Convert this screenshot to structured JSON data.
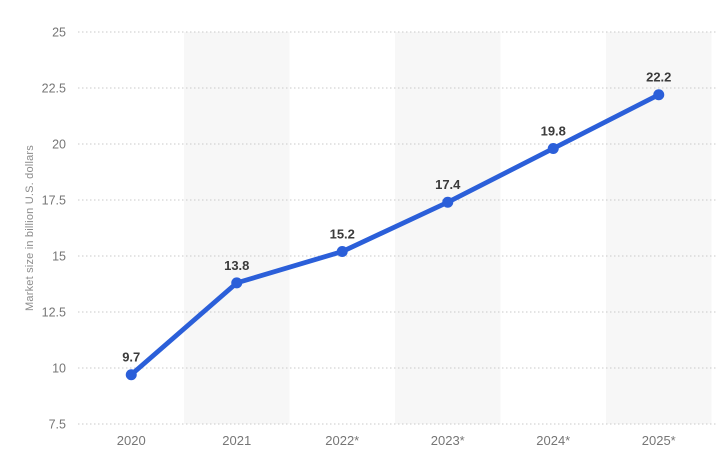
{
  "y_axis": {
    "title": "Market size in billion U.S. dollars",
    "tick_labels": [
      "25",
      "22.5",
      "20",
      "17.5",
      "15",
      "12.5",
      "10",
      "7.5"
    ]
  },
  "x_axis": {
    "tick_labels": [
      "2020",
      "2021",
      "2022*",
      "2023*",
      "2024*",
      "2025*"
    ]
  },
  "chart_data": {
    "type": "line",
    "categories": [
      "2020",
      "2021",
      "2022*",
      "2023*",
      "2024*",
      "2025*"
    ],
    "values": [
      9.7,
      13.8,
      15.2,
      17.4,
      19.8,
      22.2
    ],
    "data_labels": [
      "9.7",
      "13.8",
      "15.2",
      "17.4",
      "19.8",
      "22.2"
    ],
    "title": "",
    "xlabel": "",
    "ylabel": "Market size in billion U.S. dollars",
    "ylim": [
      7.5,
      25
    ],
    "ytick_step": 2.5,
    "grid": "horizontal-dotted",
    "legend": "none",
    "plot_bands": "alternating vertical bands on 2021, 2023*, 2025* columns",
    "colors": {
      "line": "#2b5fd9",
      "point": "#2b5fd9",
      "band": "#f7f7f7",
      "gridline": "#c9c9c9",
      "tick_text": "#767676",
      "value_text": "#3b3b3b",
      "axis_title_text": "#8c8c8c",
      "background": "#ffffff"
    }
  }
}
